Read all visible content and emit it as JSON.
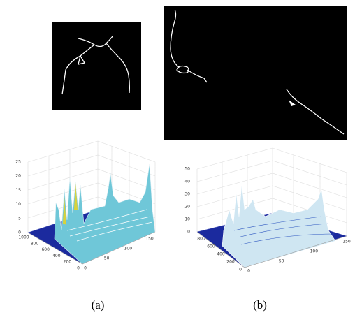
{
  "panels": [
    {
      "caption": "(a)",
      "plot": {
        "zticks": [
          "0",
          "5",
          "10",
          "15",
          "20",
          "25"
        ],
        "yticks": [
          "1000",
          "800",
          "600",
          "400",
          "200",
          "0"
        ],
        "xticks": [
          "0",
          "50",
          "100",
          "150"
        ]
      }
    },
    {
      "caption": "(b)",
      "plot": {
        "zticks": [
          "0",
          "10",
          "20",
          "30",
          "40",
          "50"
        ],
        "yticks": [
          "800",
          "600",
          "400",
          "200",
          "0"
        ],
        "xticks": [
          "0",
          "50",
          "100",
          "150"
        ]
      }
    }
  ]
}
